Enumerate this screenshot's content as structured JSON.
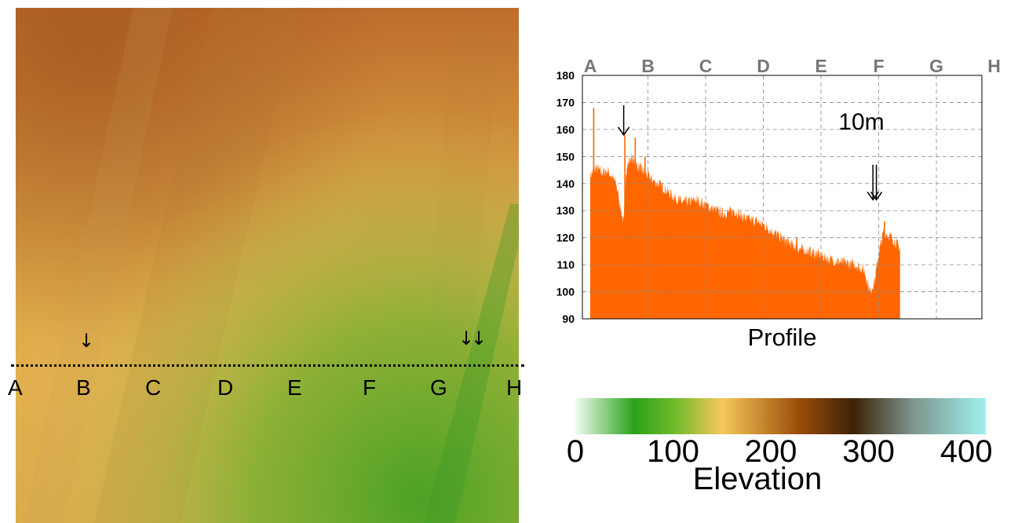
{
  "map": {
    "profile_letters": [
      "A",
      "B",
      "C",
      "D",
      "E",
      "F",
      "G",
      "H"
    ],
    "arrow_glyph": "↓"
  },
  "chart_data": {
    "type": "area",
    "title": "10m",
    "xlabel": "Profile",
    "ylabel": "",
    "x_tick_labels": [
      "A",
      "B",
      "C",
      "D",
      "E",
      "F",
      "G",
      "H"
    ],
    "ylim": [
      90,
      180
    ],
    "yticks": [
      90,
      100,
      110,
      120,
      130,
      140,
      150,
      160,
      170,
      180
    ],
    "grid": true,
    "fill_color": "#ff6600",
    "profile_points": [
      {
        "x": 0.0,
        "y": 143
      },
      {
        "x": 0.1,
        "y": 146
      },
      {
        "x": 0.2,
        "y": 144
      },
      {
        "x": 0.3,
        "y": 145
      },
      {
        "x": 0.45,
        "y": 140
      },
      {
        "x": 0.58,
        "y": 125
      },
      {
        "x": 0.62,
        "y": 145
      },
      {
        "x": 0.7,
        "y": 150
      },
      {
        "x": 0.8,
        "y": 147
      },
      {
        "x": 0.95,
        "y": 144
      },
      {
        "x": 1.1,
        "y": 141
      },
      {
        "x": 1.25,
        "y": 139
      },
      {
        "x": 1.4,
        "y": 136
      },
      {
        "x": 1.6,
        "y": 133
      },
      {
        "x": 1.85,
        "y": 134
      },
      {
        "x": 2.1,
        "y": 131
      },
      {
        "x": 2.3,
        "y": 129
      },
      {
        "x": 2.5,
        "y": 130
      },
      {
        "x": 2.7,
        "y": 127
      },
      {
        "x": 2.9,
        "y": 126
      },
      {
        "x": 3.05,
        "y": 124
      },
      {
        "x": 3.25,
        "y": 121
      },
      {
        "x": 3.45,
        "y": 118
      },
      {
        "x": 3.6,
        "y": 116
      },
      {
        "x": 3.8,
        "y": 115
      },
      {
        "x": 3.95,
        "y": 114
      },
      {
        "x": 4.15,
        "y": 112
      },
      {
        "x": 4.35,
        "y": 111
      },
      {
        "x": 4.6,
        "y": 110
      },
      {
        "x": 4.75,
        "y": 108
      },
      {
        "x": 4.85,
        "y": 100
      },
      {
        "x": 4.93,
        "y": 104
      },
      {
        "x": 5.0,
        "y": 114
      },
      {
        "x": 5.08,
        "y": 122
      },
      {
        "x": 5.17,
        "y": 121
      },
      {
        "x": 5.27,
        "y": 119
      },
      {
        "x": 5.37,
        "y": 116
      }
    ],
    "spikes": [
      {
        "x": 0.06,
        "y": 168
      },
      {
        "x": 0.6,
        "y": 158
      },
      {
        "x": 0.78,
        "y": 157
      },
      {
        "x": 0.95,
        "y": 150
      },
      {
        "x": 3.58,
        "y": 120
      },
      {
        "x": 5.1,
        "y": 126
      }
    ],
    "annotation_arrows": [
      0.58,
      4.9,
      4.96
    ]
  },
  "colorbar": {
    "title": "Elevation",
    "tick_labels": [
      "0",
      "100",
      "200",
      "300",
      "400"
    ],
    "tick_values": [
      0,
      100,
      200,
      300,
      400
    ],
    "range": [
      0,
      420
    ],
    "stops": [
      {
        "value": 0,
        "color": "#f0fbf0"
      },
      {
        "value": 60,
        "color": "#2aa21b"
      },
      {
        "value": 100,
        "color": "#6cba2a"
      },
      {
        "value": 150,
        "color": "#f5c85a"
      },
      {
        "value": 230,
        "color": "#9a4b08"
      },
      {
        "value": 285,
        "color": "#3d2208"
      },
      {
        "value": 345,
        "color": "#7d958c"
      },
      {
        "value": 420,
        "color": "#9ff0ee"
      }
    ]
  }
}
